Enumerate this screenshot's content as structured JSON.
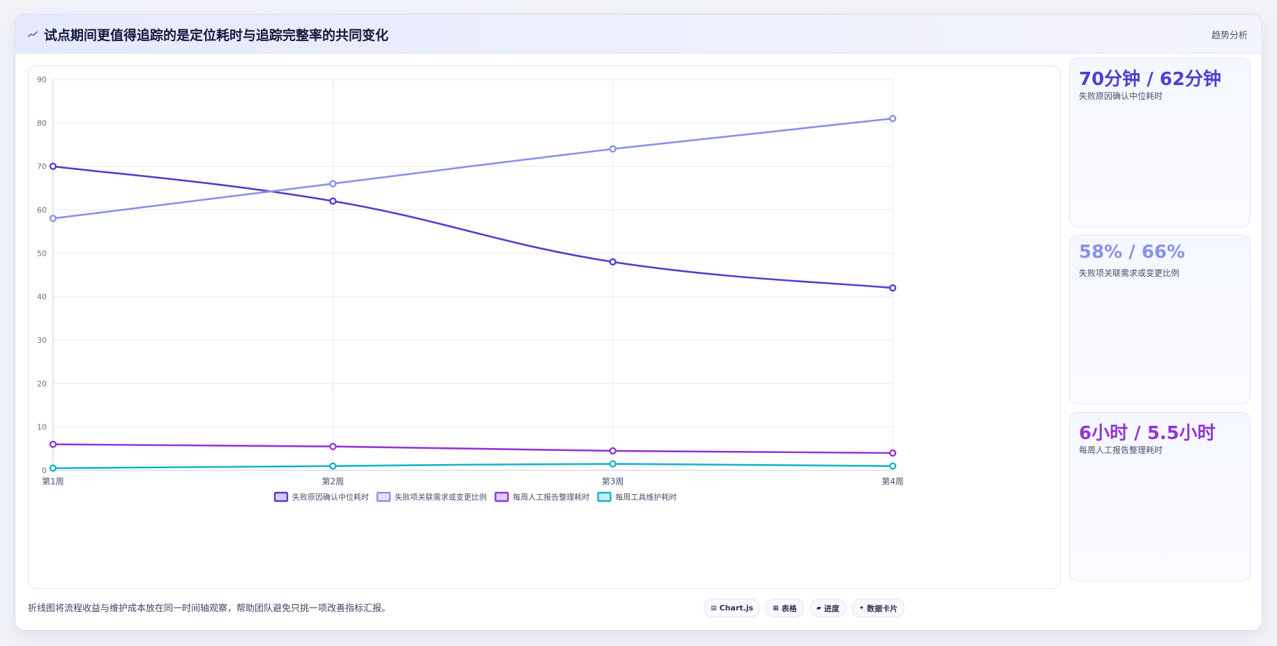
{
  "header": {
    "icon": "trend-line-icon",
    "title": "试点期间更值得追踪的是定位耗时与追踪完整率的共同变化",
    "tag": "趋势分析"
  },
  "colors": {
    "series_1": "#4f3fd0",
    "series_2": "#8a90e8",
    "series_3": "#9335d6",
    "series_4": "#16b4c8"
  },
  "chart_data": {
    "type": "line",
    "categories": [
      "第1周",
      "第2周",
      "第3周",
      "第4周"
    ],
    "ylim": [
      0,
      90
    ],
    "yticks": [
      0,
      10,
      20,
      30,
      40,
      50,
      60,
      70,
      80,
      90
    ],
    "grid": true,
    "legend_position": "bottom",
    "series": [
      {
        "name": "失败原因确认中位耗时",
        "values": [
          70,
          62,
          48,
          42
        ],
        "color": "#4f3fd0"
      },
      {
        "name": "失败项关联需求或变更比例",
        "values": [
          58,
          66,
          74,
          81
        ],
        "color": "#8a90e8"
      },
      {
        "name": "每周人工报告整理耗时",
        "values": [
          6,
          5.5,
          4.5,
          4
        ],
        "color": "#9335d6"
      },
      {
        "name": "每周工具维护耗时",
        "values": [
          0.5,
          1,
          1.5,
          1
        ],
        "color": "#16b4c8"
      }
    ]
  },
  "stats": [
    {
      "value": "70分钟 / 62分钟",
      "label": "失败原因确认中位耗时",
      "color": "#4f3fd0"
    },
    {
      "value": "58% / 66%",
      "label": "失败项关联需求或变更比例",
      "color": "#8a90e8"
    },
    {
      "value": "6小时 / 5.5小时",
      "label": "每周人工报告整理耗时",
      "color": "#9335d6"
    }
  ],
  "footer": {
    "note": "折线图将流程收益与维护成本放在同一时间轴观察，帮助团队避免只挑一项改善指标汇报。",
    "tags": [
      {
        "icon": "chart-icon",
        "glyph": "▤",
        "label": "Chart.js"
      },
      {
        "icon": "table-icon",
        "glyph": "▦",
        "label": "表格"
      },
      {
        "icon": "progress-icon",
        "glyph": "▰",
        "label": "进度"
      },
      {
        "icon": "data-card-icon",
        "glyph": "✦",
        "label": "数据卡片"
      }
    ]
  }
}
